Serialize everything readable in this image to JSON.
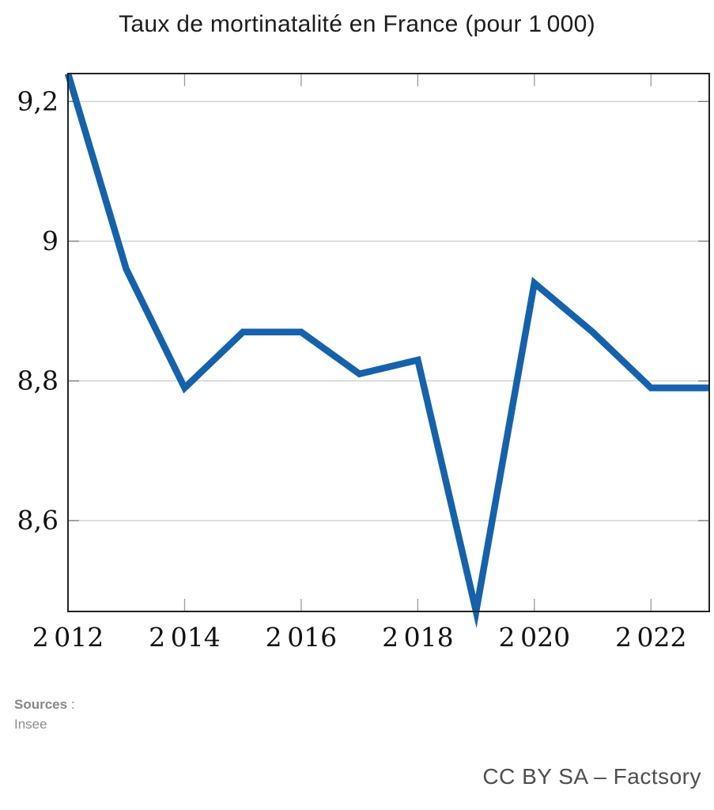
{
  "chart_data": {
    "type": "line",
    "title": "Taux de mortinatalité en France (pour 1 000)",
    "x": [
      2012,
      2013,
      2014,
      2015,
      2016,
      2017,
      2018,
      2019,
      2020,
      2021,
      2022,
      2023
    ],
    "values": [
      9.24,
      8.96,
      8.79,
      8.87,
      8.87,
      8.81,
      8.83,
      8.47,
      8.94,
      8.87,
      8.79,
      8.79
    ],
    "xlim": [
      2012,
      2023
    ],
    "ylim": [
      8.47,
      9.24
    ],
    "yticks": [
      {
        "value": 8.6,
        "label": "8,6"
      },
      {
        "value": 8.8,
        "label": "8,8"
      },
      {
        "value": 9.0,
        "label": "9"
      },
      {
        "value": 9.2,
        "label": "9,2"
      }
    ],
    "xticks": [
      {
        "value": 2012,
        "label": "2 012"
      },
      {
        "value": 2014,
        "label": "2 014"
      },
      {
        "value": 2016,
        "label": "2 016"
      },
      {
        "value": 2018,
        "label": "2 018"
      },
      {
        "value": 2020,
        "label": "2 020"
      },
      {
        "value": 2022,
        "label": "2 022"
      }
    ],
    "grid": true,
    "legend": null,
    "line_color": "#1662aa",
    "grid_color": "#c6c6c6",
    "border_color": "#222222",
    "tick_color": "#999999"
  },
  "footer": {
    "sources_label": "Sources",
    "sources_colon": " :",
    "sources_value": "Insee",
    "credit": "CC BY SA – Factsory"
  }
}
